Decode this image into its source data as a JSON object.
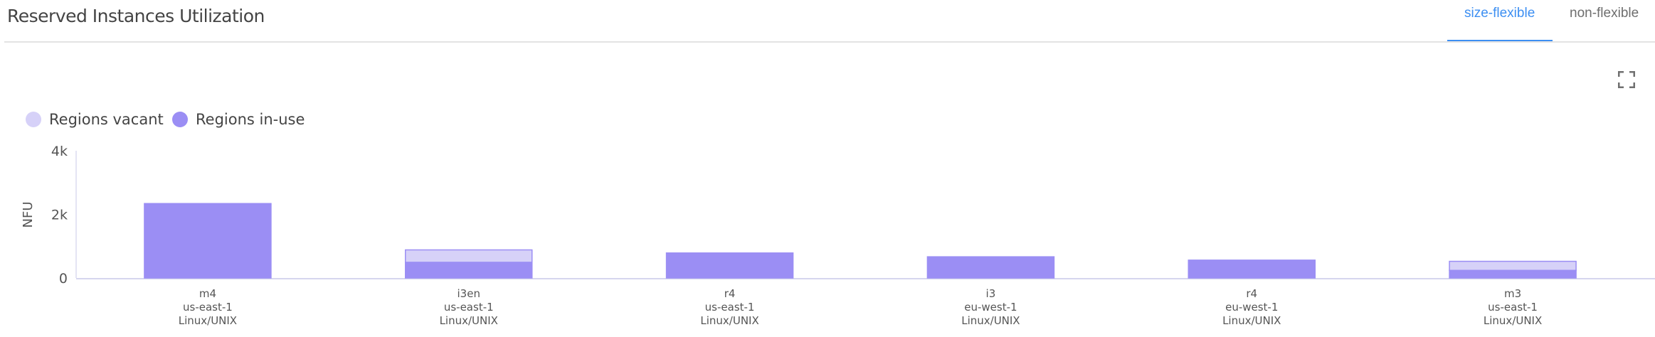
{
  "header": {
    "title": "Reserved Instances Utilization",
    "tabs": [
      {
        "label": "size-flexible",
        "active": true
      },
      {
        "label": "non-flexible",
        "active": false
      }
    ],
    "expand_icon": "fullscreen-icon",
    "accent_color": "#3d8ff2"
  },
  "chart_data": {
    "type": "bar",
    "stacked": true,
    "ylabel": "NFU",
    "ylim": [
      0,
      4000
    ],
    "yticks": [
      {
        "value": 0,
        "label": "0"
      },
      {
        "value": 2000,
        "label": "2k"
      },
      {
        "value": 4000,
        "label": "4k"
      }
    ],
    "grid": false,
    "legend_position": "top-left",
    "categories": [
      [
        "m4",
        "us-east-1",
        "Linux/UNIX"
      ],
      [
        "i3en",
        "us-east-1",
        "Linux/UNIX"
      ],
      [
        "r4",
        "us-east-1",
        "Linux/UNIX"
      ],
      [
        "i3",
        "eu-west-1",
        "Linux/UNIX"
      ],
      [
        "r4",
        "eu-west-1",
        "Linux/UNIX"
      ],
      [
        "m3",
        "us-east-1",
        "Linux/UNIX"
      ]
    ],
    "series": [
      {
        "name": "Regions in-use",
        "color": "#9b8ef4",
        "values": [
          2340,
          494,
          787,
          667,
          562,
          240
        ]
      },
      {
        "name": "Regions vacant",
        "color": "#d6d1f8",
        "values": [
          0,
          389,
          0,
          0,
          0,
          284
        ]
      }
    ],
    "legend": [
      {
        "name": "Regions vacant",
        "color": "#d6d1f8"
      },
      {
        "name": "Regions in-use",
        "color": "#9b8ef4"
      }
    ]
  }
}
